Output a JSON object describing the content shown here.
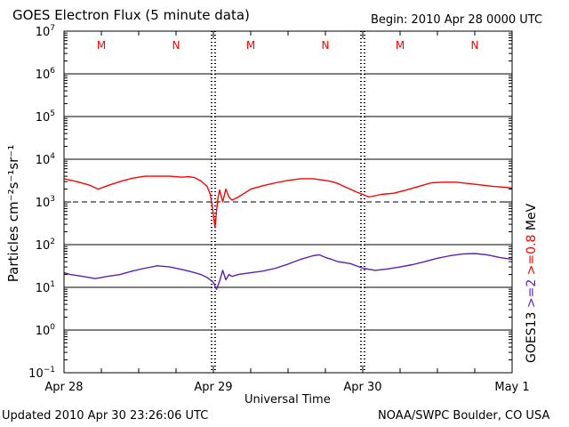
{
  "header": {
    "title": "GOES Electron Flux (5 minute data)",
    "begin": "Begin: 2010 Apr 28 0000 UTC"
  },
  "footer": {
    "updated": "Updated 2010 Apr 30 23:26:06 UTC",
    "credit": "NOAA/SWPC Boulder, CO USA"
  },
  "colors": {
    "red_series": "#ff0000",
    "purple_series": "#5b1fb4",
    "axis": "#000000"
  },
  "chart_data": {
    "type": "line",
    "title": "GOES Electron Flux (5 minute data)",
    "xlabel": "Universal Time",
    "ylabel": "Particles cm⁻²s⁻¹sr⁻¹",
    "yscale": "log",
    "ylim": [
      0.1,
      10000000
    ],
    "y_ticks": [
      {
        "value": 0.1,
        "base": "10",
        "exp": "−1"
      },
      {
        "value": 1,
        "base": "10",
        "exp": "0"
      },
      {
        "value": 10,
        "base": "10",
        "exp": "1"
      },
      {
        "value": 100,
        "base": "10",
        "exp": "2"
      },
      {
        "value": 1000,
        "base": "10",
        "exp": "3"
      },
      {
        "value": 10000,
        "base": "10",
        "exp": "4"
      },
      {
        "value": 100000,
        "base": "10",
        "exp": "5"
      },
      {
        "value": 1000000,
        "base": "10",
        "exp": "6"
      },
      {
        "value": 10000000,
        "base": "10",
        "exp": "7"
      }
    ],
    "xlim": [
      "2010-04-28 00:00",
      "2010-05-01 00:00"
    ],
    "x_ticks": [
      {
        "value": "2010-04-28 00:00",
        "label": "Apr 28"
      },
      {
        "value": "2010-04-29 00:00",
        "label": "Apr 29"
      },
      {
        "value": "2010-04-30 00:00",
        "label": "Apr 30"
      },
      {
        "value": "2010-05-01 00:00",
        "label": "May 1"
      }
    ],
    "alert_threshold": 1000,
    "mn_markers": [
      {
        "value": "2010-04-28 06:00",
        "label": "M"
      },
      {
        "value": "2010-04-28 18:00",
        "label": "N"
      },
      {
        "value": "2010-04-29 06:00",
        "label": "M"
      },
      {
        "value": "2010-04-29 18:00",
        "label": "N"
      },
      {
        "value": "2010-04-30 06:00",
        "label": "M"
      },
      {
        "value": "2010-04-30 18:00",
        "label": "N"
      }
    ],
    "right_labels": [
      {
        "text": "GOES13",
        "color": "#000000"
      },
      {
        "text": ">=2",
        "color": "#5b1fb4"
      },
      {
        "text": ">=0.8",
        "color": "#ff0000"
      },
      {
        "text": "MeV",
        "color": "#000000"
      }
    ],
    "series": [
      {
        "name": ">=0.8 MeV",
        "color": "#ff0000",
        "x": [
          "2010-04-28 00:00",
          "2010-04-28 02:00",
          "2010-04-28 04:00",
          "2010-04-28 05:30",
          "2010-04-28 07:00",
          "2010-04-28 09:00",
          "2010-04-28 11:00",
          "2010-04-28 13:00",
          "2010-04-28 15:00",
          "2010-04-28 17:00",
          "2010-04-28 19:00",
          "2010-04-28 20:00",
          "2010-04-28 21:00",
          "2010-04-28 22:00",
          "2010-04-28 23:00",
          "2010-04-28 23:30",
          "2010-04-28 23:45",
          "2010-04-29 00:00",
          "2010-04-29 00:15",
          "2010-04-29 00:30",
          "2010-04-29 00:45",
          "2010-04-29 01:00",
          "2010-04-29 01:30",
          "2010-04-29 02:00",
          "2010-04-29 02:30",
          "2010-04-29 03:00",
          "2010-04-29 04:00",
          "2010-04-29 05:00",
          "2010-04-29 06:00",
          "2010-04-29 08:00",
          "2010-04-29 10:00",
          "2010-04-29 12:00",
          "2010-04-29 14:00",
          "2010-04-29 16:00",
          "2010-04-29 18:00",
          "2010-04-29 19:00",
          "2010-04-29 20:00",
          "2010-04-29 21:00",
          "2010-04-29 22:00",
          "2010-04-29 23:00",
          "2010-04-30 00:00",
          "2010-04-30 01:00",
          "2010-04-30 02:00",
          "2010-04-30 03:00",
          "2010-04-30 05:00",
          "2010-04-30 07:00",
          "2010-04-30 09:00",
          "2010-04-30 11:00",
          "2010-04-30 13:00",
          "2010-04-30 15:00",
          "2010-04-30 17:00",
          "2010-04-30 19:00",
          "2010-04-30 21:00",
          "2010-04-30 23:00",
          "2010-05-01 00:00"
        ],
        "values": [
          3500,
          3000,
          2500,
          2000,
          2400,
          3000,
          3600,
          4000,
          4000,
          4000,
          3800,
          3900,
          3700,
          3100,
          2300,
          1500,
          900,
          500,
          250,
          600,
          1300,
          1900,
          1000,
          2000,
          1300,
          1100,
          1300,
          1600,
          2000,
          2400,
          2800,
          3200,
          3500,
          3500,
          3200,
          3000,
          2700,
          2300,
          2000,
          1700,
          1500,
          1300,
          1400,
          1500,
          1600,
          1900,
          2300,
          2800,
          2900,
          2900,
          2700,
          2500,
          2300,
          2200,
          2100
        ]
      },
      {
        "name": ">=2 MeV",
        "color": "#5b1fb4",
        "x": [
          "2010-04-28 00:00",
          "2010-04-28 01:00",
          "2010-04-28 03:00",
          "2010-04-28 05:00",
          "2010-04-28 07:00",
          "2010-04-28 09:00",
          "2010-04-28 11:00",
          "2010-04-28 13:00",
          "2010-04-28 15:00",
          "2010-04-28 17:00",
          "2010-04-28 19:00",
          "2010-04-28 20:00",
          "2010-04-28 21:00",
          "2010-04-28 22:00",
          "2010-04-28 23:00",
          "2010-04-29 00:00",
          "2010-04-29 00:30",
          "2010-04-29 01:00",
          "2010-04-29 01:30",
          "2010-04-29 02:00",
          "2010-04-29 02:30",
          "2010-04-29 03:00",
          "2010-04-29 04:00",
          "2010-04-29 06:00",
          "2010-04-29 08:00",
          "2010-04-29 10:00",
          "2010-04-29 12:00",
          "2010-04-29 14:00",
          "2010-04-29 16:00",
          "2010-04-29 17:00",
          "2010-04-29 18:00",
          "2010-04-29 19:00",
          "2010-04-29 20:00",
          "2010-04-29 22:00",
          "2010-04-30 00:00",
          "2010-04-30 02:00",
          "2010-04-30 04:00",
          "2010-04-30 06:00",
          "2010-04-30 08:00",
          "2010-04-30 10:00",
          "2010-04-30 12:00",
          "2010-04-30 14:00",
          "2010-04-30 16:00",
          "2010-04-30 18:00",
          "2010-04-30 20:00",
          "2010-04-30 22:00",
          "2010-05-01 00:00"
        ],
        "values": [
          22,
          20,
          18,
          16,
          18,
          20,
          24,
          28,
          32,
          30,
          26,
          24,
          22,
          20,
          17,
          13,
          9,
          14,
          25,
          15,
          20,
          18,
          20,
          22,
          24,
          28,
          35,
          45,
          55,
          58,
          50,
          45,
          40,
          36,
          28,
          25,
          27,
          30,
          34,
          40,
          48,
          55,
          60,
          62,
          58,
          50,
          45
        ]
      }
    ]
  }
}
